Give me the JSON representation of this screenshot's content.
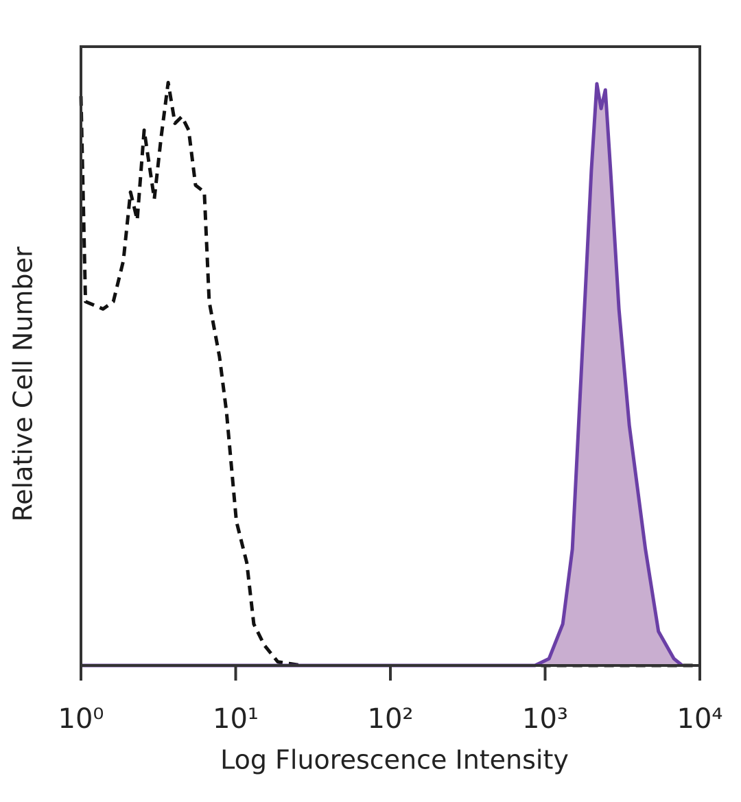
{
  "chart_data": {
    "type": "histogram-overlay",
    "x_label": "Log Fluorescence Intensity",
    "y_label": "Relative Cell Number",
    "xscale": "log",
    "xlim": [
      1,
      10000
    ],
    "ylim": [
      0,
      100
    ],
    "xticks": [
      {
        "value": 1,
        "label": "10⁰"
      },
      {
        "value": 10,
        "label": "10¹"
      },
      {
        "value": 100,
        "label": "10²"
      },
      {
        "value": 1000,
        "label": "10³"
      },
      {
        "value": 10000,
        "label": "10⁴"
      }
    ],
    "series": [
      {
        "color": "#111111",
        "dashed": true,
        "filled": false,
        "x": [
          1.0,
          1.07,
          1.39,
          1.62,
          1.88,
          2.09,
          2.31,
          2.56,
          2.98,
          3.3,
          3.66,
          4.05,
          4.49,
          4.97,
          5.5,
          6.27,
          6.74,
          7.86,
          8.72,
          10.1,
          11.8,
          13.1,
          15.3,
          18.7,
          26.8,
          955,
          9500
        ],
        "values": [
          92,
          58.8,
          57.6,
          58.8,
          65.4,
          76.5,
          72,
          86.5,
          75.4,
          85.4,
          94.2,
          87.6,
          88.7,
          86.5,
          77.6,
          76.5,
          58.8,
          49.9,
          41,
          23.3,
          16.6,
          6.7,
          3.3,
          0.6,
          0,
          0,
          0
        ]
      },
      {
        "color": "#6a3fa6",
        "fill": "#c9aed0",
        "dashed": false,
        "filled": true,
        "x": [
          1,
          860,
          1060,
          1300,
          1500,
          1750,
          1990,
          2160,
          2300,
          2450,
          2650,
          3000,
          3500,
          4450,
          5400,
          6800,
          7700
        ],
        "values": [
          0,
          0,
          1.1,
          6.7,
          18.8,
          52,
          80,
          94,
          90,
          93,
          80,
          57.6,
          38.8,
          18.8,
          5.5,
          1.1,
          0
        ]
      }
    ]
  }
}
